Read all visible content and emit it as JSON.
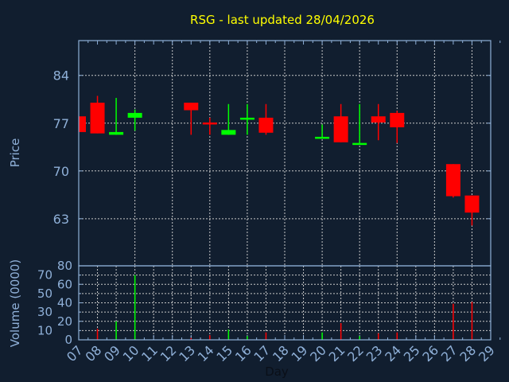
{
  "title": "RSG - last updated 28/04/2026",
  "colors": {
    "background": "#111e2f",
    "axis": "#8fb0d8",
    "title": "#ffff00",
    "up": "#00ff00",
    "down": "#ff0000",
    "grid": "#c8c8c8"
  },
  "chart_data": [
    {
      "type": "candlestick",
      "ylabel": "Price",
      "ylim": [
        56.1,
        89.1
      ],
      "yticks": [
        63,
        70,
        77,
        84
      ],
      "grid": true,
      "x": [
        "07",
        "08",
        "09",
        "10",
        "13",
        "14",
        "15",
        "16",
        "17",
        "20",
        "21",
        "22",
        "23",
        "24",
        "27",
        "28"
      ],
      "open": [
        78.0,
        80.0,
        75.3,
        77.8,
        80.0,
        77.1,
        75.3,
        77.7,
        77.8,
        74.9,
        78.0,
        74.0,
        78.0,
        78.5,
        71.0,
        66.4
      ],
      "close": [
        75.7,
        75.5,
        75.7,
        78.5,
        78.9,
        77.0,
        76.0,
        77.8,
        75.6,
        75.0,
        74.2,
        74.1,
        77.1,
        76.4,
        66.3,
        63.9
      ],
      "high": [
        78.0,
        81.0,
        80.7,
        79.0,
        80.0,
        77.8,
        79.8,
        79.8,
        79.8,
        76.8,
        79.8,
        79.8,
        79.8,
        78.8,
        71.0,
        66.4
      ],
      "low": [
        75.7,
        75.5,
        75.3,
        75.9,
        75.3,
        75.3,
        75.3,
        75.3,
        75.3,
        74.9,
        74.2,
        74.0,
        74.5,
        74.1,
        66.1,
        62.0
      ]
    },
    {
      "type": "bar",
      "ylabel": "Volume (0000)",
      "xlabel": "Day",
      "ylim": [
        0,
        80
      ],
      "yticks": [
        0,
        10,
        20,
        30,
        40,
        50,
        60,
        70,
        80
      ],
      "xticks": [
        "07",
        "08",
        "09",
        "10",
        "11",
        "12",
        "13",
        "14",
        "15",
        "16",
        "17",
        "18",
        "19",
        "20",
        "21",
        "22",
        "23",
        "24",
        "25",
        "26",
        "27",
        "28",
        "29"
      ],
      "grid": true,
      "x": [
        "08",
        "09",
        "10",
        "13",
        "14",
        "15",
        "16",
        "17",
        "20",
        "21",
        "22",
        "23",
        "24",
        "27",
        "28"
      ],
      "values": [
        12,
        20,
        70,
        2,
        5,
        11,
        4,
        8,
        8,
        18,
        4,
        7,
        8,
        39,
        41
      ],
      "direction": [
        "down",
        "up",
        "up",
        "down",
        "down",
        "up",
        "up",
        "down",
        "up",
        "down",
        "up",
        "down",
        "down",
        "down",
        "down"
      ]
    }
  ]
}
